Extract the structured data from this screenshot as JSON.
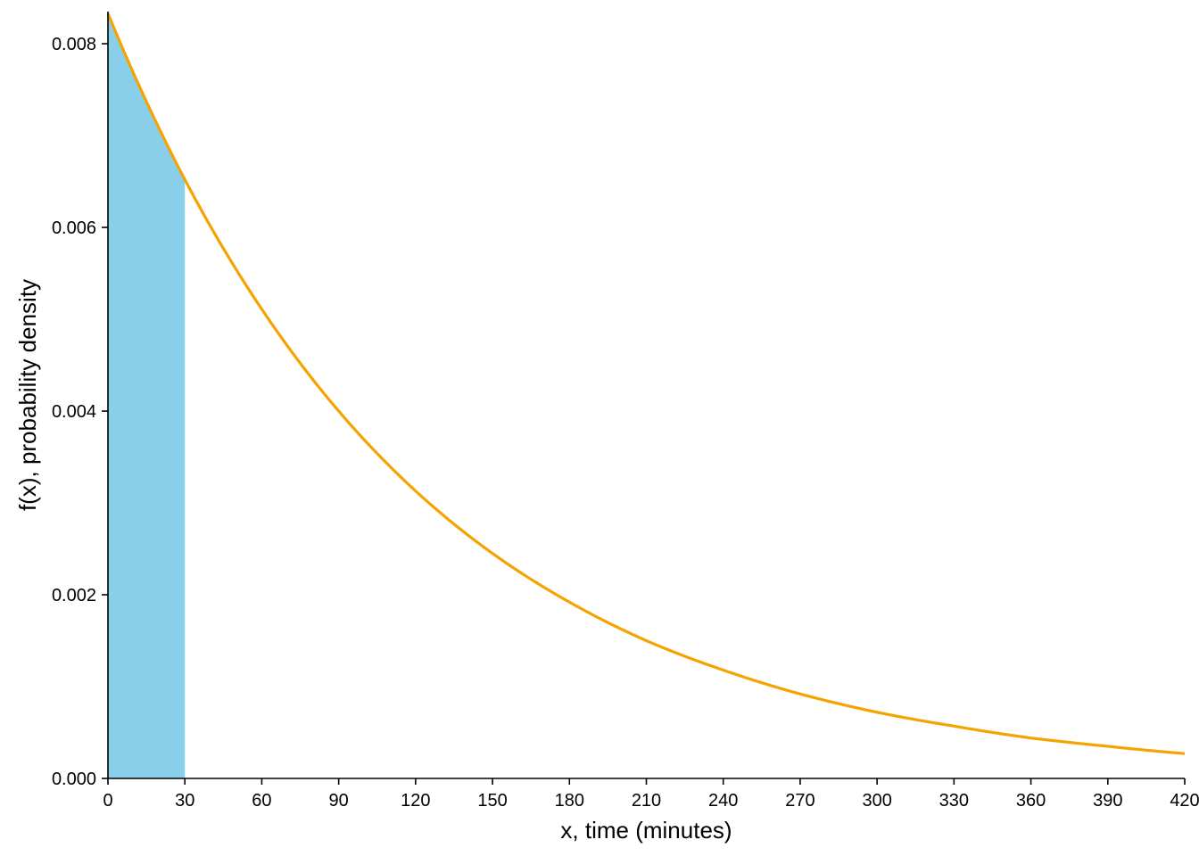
{
  "chart_data": {
    "type": "area",
    "title": "",
    "xlabel": "x, time (minutes)",
    "ylabel": "f(x), probability density",
    "xlim": [
      0,
      420
    ],
    "ylim": [
      0,
      0.00835
    ],
    "xticks": [
      0,
      30,
      60,
      90,
      120,
      150,
      180,
      210,
      240,
      270,
      300,
      330,
      360,
      390,
      420
    ],
    "xtick_labels": [
      "0",
      "30",
      "60",
      "90",
      "120",
      "150",
      "180",
      "210",
      "240",
      "270",
      "300",
      "330",
      "360",
      "390",
      "420"
    ],
    "yticks": [
      0.0,
      0.002,
      0.004,
      0.006,
      0.008
    ],
    "ytick_labels": [
      "0.000",
      "0.002",
      "0.004",
      "0.006",
      "0.008"
    ],
    "grid": false,
    "series": [
      {
        "kind": "line",
        "color": "#F5A300",
        "x": [
          0,
          30,
          60,
          90,
          120,
          150,
          180,
          210,
          240,
          270,
          300,
          330,
          360,
          390,
          420
        ],
        "y": [
          0.00833,
          0.00652,
          0.00511,
          0.004,
          0.00313,
          0.00245,
          0.00192,
          0.0015,
          0.00118,
          0.00092,
          0.00072,
          0.00057,
          0.00044,
          0.00035,
          0.00027
        ]
      },
      {
        "kind": "shaded-area",
        "color": "#89CFEA",
        "x_from": 0,
        "x_to": 30
      }
    ]
  }
}
